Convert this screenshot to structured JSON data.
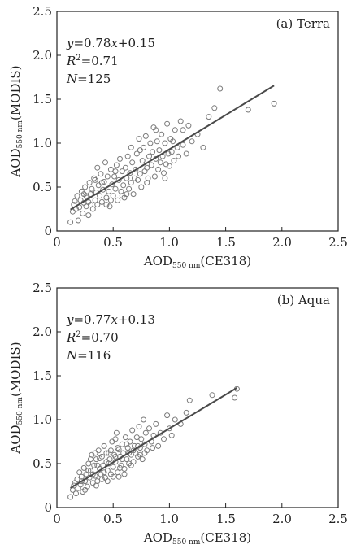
{
  "chart_data": [
    {
      "type": "scatter",
      "panel_label": "(a)  Terra",
      "stats": {
        "eq_y": "y",
        "eq_rest_1": "=0.78",
        "eq_x": "x",
        "eq_rest_2": "+0.15",
        "r2_sym": "R",
        "r2_sup": "2",
        "r2_val": "=0.71",
        "n_sym": "N",
        "n_val": "=125"
      },
      "xlabel": {
        "main": "AOD",
        "sub": "550 nm",
        "tail": "(CE318)"
      },
      "ylabel": {
        "main": "AOD",
        "sub": "550 nm",
        "tail": "(MODIS)"
      },
      "xlim": [
        0,
        2.5
      ],
      "ylim": [
        0,
        2.5
      ],
      "xticks": [
        "0",
        "0.5",
        "1.0",
        "1.5",
        "2.0",
        "2.5"
      ],
      "yticks": [
        "0",
        "0.5",
        "1.0",
        "1.5",
        "2.0",
        "2.5"
      ],
      "fit": {
        "slope": 0.78,
        "intercept": 0.15,
        "x_range": [
          0.12,
          1.93
        ]
      },
      "points": [
        [
          0.12,
          0.1
        ],
        [
          0.14,
          0.22
        ],
        [
          0.15,
          0.3
        ],
        [
          0.17,
          0.25
        ],
        [
          0.18,
          0.4
        ],
        [
          0.19,
          0.12
        ],
        [
          0.2,
          0.27
        ],
        [
          0.21,
          0.35
        ],
        [
          0.22,
          0.45
        ],
        [
          0.23,
          0.2
        ],
        [
          0.24,
          0.32
        ],
        [
          0.25,
          0.5
        ],
        [
          0.26,
          0.28
        ],
        [
          0.27,
          0.38
        ],
        [
          0.28,
          0.18
        ],
        [
          0.29,
          0.55
        ],
        [
          0.3,
          0.42
        ],
        [
          0.3,
          0.3
        ],
        [
          0.31,
          0.48
        ],
        [
          0.32,
          0.25
        ],
        [
          0.33,
          0.6
        ],
        [
          0.34,
          0.35
        ],
        [
          0.35,
          0.44
        ],
        [
          0.36,
          0.72
        ],
        [
          0.36,
          0.3
        ],
        [
          0.37,
          0.52
        ],
        [
          0.38,
          0.4
        ],
        [
          0.39,
          0.65
        ],
        [
          0.4,
          0.33
        ],
        [
          0.41,
          0.47
        ],
        [
          0.42,
          0.56
        ],
        [
          0.43,
          0.78
        ],
        [
          0.44,
          0.38
        ],
        [
          0.45,
          0.62
        ],
        [
          0.46,
          0.45
        ],
        [
          0.47,
          0.28
        ],
        [
          0.48,
          0.7
        ],
        [
          0.49,
          0.53
        ],
        [
          0.5,
          0.4
        ],
        [
          0.51,
          0.62
        ],
        [
          0.52,
          0.48
        ],
        [
          0.53,
          0.75
        ],
        [
          0.54,
          0.35
        ],
        [
          0.55,
          0.58
        ],
        [
          0.56,
          0.82
        ],
        [
          0.57,
          0.45
        ],
        [
          0.58,
          0.68
        ],
        [
          0.59,
          0.52
        ],
        [
          0.6,
          0.38
        ],
        [
          0.61,
          0.72
        ],
        [
          0.62,
          0.6
        ],
        [
          0.63,
          0.85
        ],
        [
          0.64,
          0.48
        ],
        [
          0.65,
          0.66
        ],
        [
          0.66,
          0.55
        ],
        [
          0.67,
          0.78
        ],
        [
          0.68,
          0.42
        ],
        [
          0.7,
          0.7
        ],
        [
          0.71,
          0.88
        ],
        [
          0.72,
          0.58
        ],
        [
          0.73,
          1.05
        ],
        [
          0.74,
          0.65
        ],
        [
          0.75,
          0.5
        ],
        [
          0.76,
          0.8
        ],
        [
          0.77,
          0.95
        ],
        [
          0.78,
          0.68
        ],
        [
          0.79,
          1.08
        ],
        [
          0.8,
          0.72
        ],
        [
          0.81,
          0.6
        ],
        [
          0.82,
          0.85
        ],
        [
          0.83,
          1.0
        ],
        [
          0.84,
          0.75
        ],
        [
          0.85,
          0.9
        ],
        [
          0.86,
          1.18
        ],
        [
          0.87,
          0.62
        ],
        [
          0.88,
          0.82
        ],
        [
          0.89,
          1.02
        ],
        [
          0.9,
          0.7
        ],
        [
          0.91,
          0.92
        ],
        [
          0.92,
          0.78
        ],
        [
          0.93,
          1.1
        ],
        [
          0.94,
          0.85
        ],
        [
          0.95,
          0.66
        ],
        [
          0.96,
          1.0
        ],
        [
          0.97,
          0.76
        ],
        [
          0.98,
          1.22
        ],
        [
          0.99,
          0.88
        ],
        [
          1.0,
          0.74
        ],
        [
          1.01,
          1.05
        ],
        [
          1.02,
          0.9
        ],
        [
          1.04,
          0.8
        ],
        [
          1.05,
          1.15
        ],
        [
          1.07,
          0.95
        ],
        [
          1.08,
          0.85
        ],
        [
          1.1,
          1.25
        ],
        [
          1.12,
          0.98
        ],
        [
          1.15,
          0.88
        ],
        [
          1.17,
          1.2
        ],
        [
          1.2,
          1.02
        ],
        [
          1.25,
          1.1
        ],
        [
          1.3,
          0.95
        ],
        [
          1.35,
          1.3
        ],
        [
          1.4,
          1.4
        ],
        [
          1.45,
          1.62
        ],
        [
          1.7,
          1.38
        ],
        [
          1.93,
          1.45
        ],
        [
          0.16,
          0.34
        ],
        [
          0.26,
          0.4
        ],
        [
          0.34,
          0.58
        ],
        [
          0.44,
          0.3
        ],
        [
          0.52,
          0.68
        ],
        [
          0.58,
          0.4
        ],
        [
          0.66,
          0.95
        ],
        [
          0.69,
          0.6
        ],
        [
          0.74,
          0.92
        ],
        [
          0.8,
          0.55
        ],
        [
          0.88,
          1.15
        ],
        [
          0.96,
          0.6
        ],
        [
          1.03,
          1.02
        ],
        [
          1.12,
          1.15
        ],
        [
          0.24,
          0.42
        ],
        [
          0.4,
          0.55
        ],
        [
          0.48,
          0.35
        ],
        [
          0.62,
          0.42
        ],
        [
          0.28,
          0.33
        ]
      ]
    },
    {
      "type": "scatter",
      "panel_label": "(b)  Aqua",
      "stats": {
        "eq_y": "y",
        "eq_rest_1": "=0.77",
        "eq_x": "x",
        "eq_rest_2": "+0.13",
        "r2_sym": "R",
        "r2_sup": "2",
        "r2_val": "=0.70",
        "n_sym": "N",
        "n_val": "=116"
      },
      "xlabel": {
        "main": "AOD",
        "sub": "550 nm",
        "tail": "(CE318)"
      },
      "ylabel": {
        "main": "AOD",
        "sub": "550 nm",
        "tail": "(MODIS)"
      },
      "xlim": [
        0,
        2.5
      ],
      "ylim": [
        0,
        2.5
      ],
      "xticks": [
        "0",
        "0.5",
        "1.0",
        "1.5",
        "2.0",
        "2.5"
      ],
      "yticks": [
        "0",
        "0.5",
        "1.0",
        "1.5",
        "2.0",
        "2.5"
      ],
      "fit": {
        "slope": 0.77,
        "intercept": 0.13,
        "x_range": [
          0.12,
          1.6
        ]
      },
      "points": [
        [
          0.12,
          0.12
        ],
        [
          0.14,
          0.2
        ],
        [
          0.16,
          0.28
        ],
        [
          0.17,
          0.16
        ],
        [
          0.18,
          0.32
        ],
        [
          0.19,
          0.22
        ],
        [
          0.2,
          0.4
        ],
        [
          0.21,
          0.26
        ],
        [
          0.22,
          0.35
        ],
        [
          0.23,
          0.18
        ],
        [
          0.24,
          0.45
        ],
        [
          0.25,
          0.3
        ],
        [
          0.26,
          0.38
        ],
        [
          0.27,
          0.24
        ],
        [
          0.28,
          0.5
        ],
        [
          0.29,
          0.34
        ],
        [
          0.3,
          0.42
        ],
        [
          0.31,
          0.6
        ],
        [
          0.32,
          0.28
        ],
        [
          0.33,
          0.48
        ],
        [
          0.34,
          0.36
        ],
        [
          0.35,
          0.55
        ],
        [
          0.36,
          0.3
        ],
        [
          0.37,
          0.65
        ],
        [
          0.38,
          0.44
        ],
        [
          0.39,
          0.38
        ],
        [
          0.4,
          0.58
        ],
        [
          0.41,
          0.48
        ],
        [
          0.42,
          0.7
        ],
        [
          0.43,
          0.34
        ],
        [
          0.44,
          0.52
        ],
        [
          0.45,
          0.42
        ],
        [
          0.46,
          0.62
        ],
        [
          0.47,
          0.55
        ],
        [
          0.48,
          0.38
        ],
        [
          0.49,
          0.75
        ],
        [
          0.5,
          0.46
        ],
        [
          0.51,
          0.6
        ],
        [
          0.52,
          0.52
        ],
        [
          0.53,
          0.85
        ],
        [
          0.54,
          0.4
        ],
        [
          0.55,
          0.66
        ],
        [
          0.56,
          0.58
        ],
        [
          0.57,
          0.48
        ],
        [
          0.58,
          0.72
        ],
        [
          0.59,
          0.62
        ],
        [
          0.6,
          0.44
        ],
        [
          0.61,
          0.8
        ],
        [
          0.62,
          0.55
        ],
        [
          0.63,
          0.68
        ],
        [
          0.64,
          0.5
        ],
        [
          0.65,
          0.75
        ],
        [
          0.66,
          0.6
        ],
        [
          0.67,
          0.88
        ],
        [
          0.68,
          0.52
        ],
        [
          0.69,
          0.7
        ],
        [
          0.7,
          0.62
        ],
        [
          0.71,
          0.8
        ],
        [
          0.72,
          0.58
        ],
        [
          0.73,
          0.92
        ],
        [
          0.74,
          0.68
        ],
        [
          0.75,
          0.78
        ],
        [
          0.76,
          0.55
        ],
        [
          0.77,
          1.0
        ],
        [
          0.78,
          0.72
        ],
        [
          0.79,
          0.85
        ],
        [
          0.8,
          0.65
        ],
        [
          0.82,
          0.9
        ],
        [
          0.84,
          0.75
        ],
        [
          0.86,
          0.82
        ],
        [
          0.88,
          0.95
        ],
        [
          0.9,
          0.7
        ],
        [
          0.92,
          0.85
        ],
        [
          0.95,
          0.78
        ],
        [
          0.98,
          1.05
        ],
        [
          1.0,
          0.9
        ],
        [
          1.02,
          0.82
        ],
        [
          1.05,
          1.0
        ],
        [
          1.1,
          0.95
        ],
        [
          1.15,
          1.08
        ],
        [
          1.18,
          1.22
        ],
        [
          1.38,
          1.28
        ],
        [
          1.58,
          1.25
        ],
        [
          1.6,
          1.35
        ],
        [
          0.15,
          0.25
        ],
        [
          0.25,
          0.2
        ],
        [
          0.35,
          0.25
        ],
        [
          0.45,
          0.3
        ],
        [
          0.5,
          0.35
        ],
        [
          0.55,
          0.35
        ],
        [
          0.6,
          0.38
        ],
        [
          0.38,
          0.56
        ],
        [
          0.48,
          0.65
        ],
        [
          0.52,
          0.78
        ],
        [
          0.58,
          0.55
        ],
        [
          0.62,
          0.72
        ],
        [
          0.66,
          0.48
        ],
        [
          0.72,
          0.7
        ],
        [
          0.42,
          0.4
        ],
        [
          0.3,
          0.55
        ],
        [
          0.22,
          0.3
        ],
        [
          0.28,
          0.42
        ],
        [
          0.36,
          0.48
        ],
        [
          0.44,
          0.62
        ],
        [
          0.54,
          0.68
        ],
        [
          0.64,
          0.62
        ],
        [
          0.74,
          0.6
        ],
        [
          0.85,
          0.68
        ],
        [
          0.32,
          0.38
        ],
        [
          0.46,
          0.5
        ],
        [
          0.56,
          0.45
        ],
        [
          0.68,
          0.65
        ],
        [
          0.78,
          0.62
        ],
        [
          0.52,
          0.58
        ],
        [
          0.4,
          0.32
        ],
        [
          0.34,
          0.62
        ]
      ]
    }
  ]
}
